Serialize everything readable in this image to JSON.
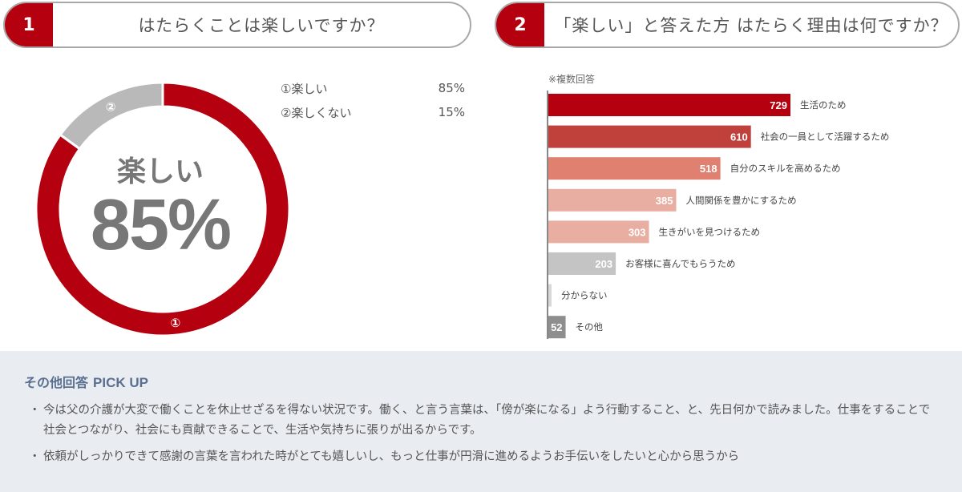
{
  "q1": {
    "number": "1",
    "title": "はたらくことは楽しいですか？"
  },
  "q2": {
    "number": "2",
    "title": "「楽しい」と答えた方 はたらく理由は何ですか？"
  },
  "donut": {
    "center_label": "楽しい",
    "center_value": "85%",
    "slice_markers": [
      "①",
      "②"
    ]
  },
  "legend": [
    {
      "label": "①楽しい",
      "value": "85%"
    },
    {
      "label": "②楽しくない",
      "value": "15%"
    }
  ],
  "bar_note": "※複数回答",
  "chart_data": [
    {
      "type": "pie",
      "categories": [
        "①楽しい",
        "②楽しくない"
      ],
      "values": [
        85,
        15
      ],
      "colors": [
        "#b5000f",
        "#b9b9b9"
      ]
    },
    {
      "type": "bar",
      "orientation": "horizontal",
      "categories": [
        "生活のため",
        "社会の一員として活躍するため",
        "自分のスキルを高めるため",
        "人間関係を豊かにするため",
        "生きがいを見つけるため",
        "お客様に喜んでもらうため",
        "分からない",
        "その他"
      ],
      "values": [
        729,
        610,
        518,
        385,
        303,
        203,
        null,
        52
      ],
      "value_labels": [
        "729",
        "610",
        "518",
        "385",
        "303",
        "203",
        "",
        "52"
      ],
      "colors": [
        "#b5000f",
        "#c0403c",
        "#e08070",
        "#e9aea2",
        "#e9aea2",
        "#c4c4c4",
        "#d8d8d8",
        "#8e8e8e"
      ],
      "xlim": [
        0,
        729
      ]
    }
  ],
  "pickup": {
    "title": "その他回答",
    "title_en": "PICK UP",
    "bullet": "・",
    "items": [
      "今は父の介護が大変で働くことを休止せざるを得ない状況です。働く、と言う言葉は、「傍が楽になる」よう行動すること、と、先日何かで読みました。仕事をすることで社会とつながり、社会にも貢献できることで、生活や気持ちに張りが出るからです。",
      "依頼がしっかりできて感謝の言葉を言われた時がとても嬉しいし、もっと仕事が円滑に進めるようお手伝いをしたいと心から思うから"
    ]
  }
}
